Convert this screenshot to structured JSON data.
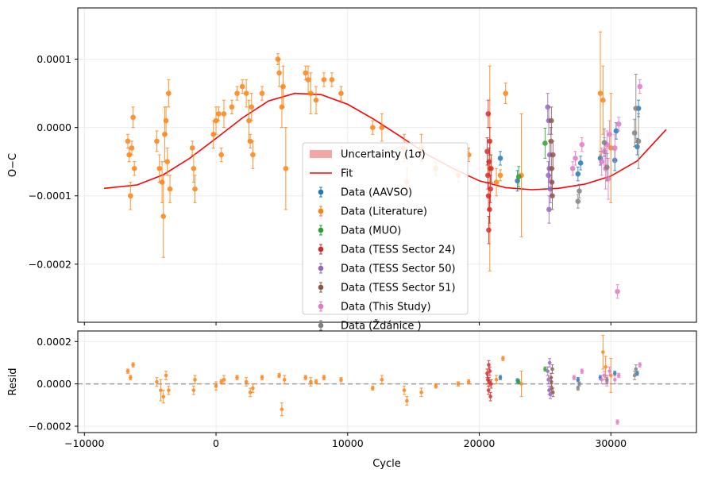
{
  "chart_data": [
    {
      "type": "scatter",
      "panel": "top",
      "xlabel": "",
      "ylabel": "O−C",
      "xlim": [
        -10500,
        36500
      ],
      "ylim": [
        -0.000285,
        0.000175
      ],
      "xticks": [
        -10000,
        0,
        10000,
        20000,
        30000
      ],
      "yticks": [
        -0.0002,
        -0.0001,
        0.0,
        0.0001
      ],
      "ytick_labels": [
        "−0.0002",
        "−0.0001",
        "0.0000",
        "0.0001"
      ],
      "grid": true,
      "legend_position": "center",
      "legend": {
        "band_label": "Uncertainty (1σ)",
        "fit_label": "Fit",
        "series_labels": [
          "Data (AAVSO)",
          "Data (Literature)",
          "Data (MUO)",
          "Data (TESS Sector 24)",
          "Data (TESS Sector 50)",
          "Data (TESS Sector 51)",
          "Data (This Study)",
          "Data (Ždánice )"
        ]
      },
      "fit": {
        "x": [
          -8500,
          -6000,
          -4000,
          -2000,
          0,
          2000,
          4000,
          6000,
          8000,
          10000,
          12000,
          14000,
          16000,
          18000,
          20000,
          22000,
          24000,
          26000,
          28000,
          30000,
          32000,
          34200
        ],
        "y": [
          -8.9e-05,
          -8.4e-05,
          -6.9e-05,
          -4.5e-05,
          -1.6e-05,
          1.4e-05,
          3.9e-05,
          5e-05,
          4.8e-05,
          3.4e-05,
          1.2e-05,
          -1.3e-05,
          -3.9e-05,
          -6e-05,
          -7.8e-05,
          -8.8e-05,
          -9.1e-05,
          -8.9e-05,
          -8.3e-05,
          -7.1e-05,
          -4.9e-05,
          -3e-06
        ]
      },
      "series": [
        {
          "name": "Data (AAVSO)",
          "color": "#1f77b4",
          "x": [
            21600,
            22900,
            27500,
            27700,
            29200,
            30300,
            30400,
            32000,
            32100
          ],
          "y": [
            -4.5e-05,
            -7.8e-05,
            -6.8e-05,
            -5.2e-05,
            -4.5e-05,
            -4.8e-05,
            -5e-06,
            -2.8e-05,
            2.8e-05
          ],
          "err": [
            1e-05,
            1.5e-05,
            1e-05,
            1e-05,
            1e-05,
            1.5e-05,
            1.2e-05,
            1.2e-05,
            1.2e-05
          ]
        },
        {
          "name": "Data (Literature)",
          "color": "#ff7f0e",
          "x": [
            -6700,
            -6600,
            -6500,
            -6400,
            -6300,
            -6200,
            -4500,
            -4300,
            -4100,
            -4000,
            -3900,
            -3800,
            -3700,
            -3600,
            -3500,
            -1800,
            -1700,
            -1600,
            -200,
            0,
            200,
            400,
            600,
            1200,
            1600,
            2000,
            2300,
            2500,
            2600,
            2700,
            2800,
            3500,
            4700,
            4800,
            5000,
            5100,
            5300,
            6800,
            7000,
            7200,
            7600,
            8200,
            8800,
            9500,
            11900,
            12600,
            14300,
            14500,
            15600,
            16700,
            18400,
            19200,
            20800,
            21300,
            21600,
            22000,
            23200,
            29200,
            29400,
            30000
          ],
          "y": [
            -2e-05,
            -4e-05,
            -0.0001,
            -3e-05,
            1.5e-05,
            -6e-05,
            -2e-05,
            -6e-05,
            -8e-05,
            -0.00013,
            -1e-05,
            1e-05,
            -5e-05,
            5e-05,
            -9e-05,
            -3e-05,
            -6e-05,
            -9e-05,
            -1e-05,
            1e-05,
            2e-05,
            -4e-05,
            2e-05,
            3e-05,
            5e-05,
            6e-05,
            5e-05,
            1e-05,
            -2e-05,
            3e-05,
            -4e-05,
            5e-05,
            0.0001,
            8e-05,
            3e-05,
            6e-05,
            -6e-05,
            8e-05,
            7e-05,
            5e-05,
            4e-05,
            7e-05,
            7e-05,
            5e-05,
            0.0,
            0.0,
            -3e-05,
            -8e-05,
            -3e-05,
            -6e-05,
            -7e-05,
            -4e-05,
            -6e-05,
            -8e-05,
            -7e-05,
            5e-05,
            -7e-05,
            5e-05,
            4e-05,
            -3e-05
          ],
          "err": [
            1e-05,
            1e-05,
            2e-05,
            1e-05,
            1.5e-05,
            1e-05,
            1.5e-05,
            2e-05,
            3e-05,
            6e-05,
            4e-05,
            2e-05,
            2e-05,
            2e-05,
            2e-05,
            1e-05,
            2e-05,
            2e-05,
            2e-05,
            2e-05,
            1e-05,
            1e-05,
            2e-05,
            1e-05,
            1e-05,
            1e-05,
            2e-05,
            3e-05,
            1e-05,
            2e-05,
            2e-05,
            1e-05,
            8e-06,
            2e-05,
            3e-05,
            3e-05,
            6e-05,
            1e-05,
            2e-05,
            3e-05,
            2e-05,
            1e-05,
            1e-05,
            1e-05,
            1e-05,
            2e-05,
            2e-05,
            2e-05,
            2e-05,
            1e-05,
            1e-05,
            1e-05,
            0.00015,
            2e-05,
            8e-06,
            1.5e-05,
            9e-05,
            9e-05,
            5e-05,
            8e-05
          ]
        },
        {
          "name": "Data (MUO)",
          "color": "#2ca02c",
          "x": [
            23000,
            25000
          ],
          "y": [
            -7.2e-05,
            -2.3e-05
          ],
          "err": [
            1.5e-05,
            2.2e-05
          ]
        },
        {
          "name": "Data (TESS Sector 24)",
          "color": "#d62728",
          "x": [
            20600,
            20650,
            20700,
            20750,
            20800,
            20850,
            20900,
            20720,
            20680,
            20780
          ],
          "y": [
            -3.5e-05,
            -7e-05,
            -0.0001,
            -5e-05,
            -2e-05,
            -9e-05,
            -6e-05,
            -0.00015,
            2e-05,
            -0.00012
          ],
          "err": [
            2e-05,
            2e-05,
            2e-05,
            2e-05,
            2e-05,
            2e-05,
            2e-05,
            2e-05,
            2e-05,
            2e-05
          ]
        },
        {
          "name": "Data (TESS Sector 50)",
          "color": "#9467bd",
          "x": [
            25200,
            25250,
            25300,
            25350,
            25400,
            25280,
            25320
          ],
          "y": [
            3e-05,
            -7e-05,
            -0.00012,
            -4e-05,
            -9e-05,
            1e-05,
            -6e-05
          ],
          "err": [
            2e-05,
            2e-05,
            2e-05,
            2e-05,
            2e-05,
            2e-05,
            2e-05
          ]
        },
        {
          "name": "Data (TESS Sector 51)",
          "color": "#8c564b",
          "x": [
            25450,
            25500,
            25550,
            25600,
            25480,
            25520
          ],
          "y": [
            -2e-05,
            -6e-05,
            -0.0001,
            -4e-05,
            1e-05,
            -8e-05
          ],
          "err": [
            2e-05,
            2e-05,
            2e-05,
            2e-05,
            2e-05,
            2e-05
          ]
        },
        {
          "name": "Data (This Study)",
          "color": "#e377c2",
          "x": [
            27100,
            27300,
            27800,
            29300,
            29500,
            29600,
            29700,
            29800,
            29900,
            30300,
            30500,
            30600,
            32200
          ],
          "y": [
            -6e-05,
            -4.5e-05,
            -2.5e-05,
            -5e-05,
            -3.5e-05,
            -6e-05,
            -2.5e-05,
            -7.5e-05,
            -1e-05,
            -3e-05,
            -0.00024,
            5e-06,
            6e-05
          ],
          "err": [
            1e-05,
            1e-05,
            1e-05,
            2e-05,
            2e-05,
            3e-05,
            2e-05,
            3e-05,
            2e-05,
            2e-05,
            1e-05,
            1e-05,
            1e-05
          ]
        },
        {
          "name": "Data (Ždánice )",
          "color": "#7f7f7f",
          "x": [
            27500,
            27600,
            29500,
            29700,
            31800,
            31900,
            32100
          ],
          "y": [
            -0.000108,
            -9.3e-05,
            -2.2e-05,
            -5.8e-05,
            -8e-06,
            2.8e-05,
            -2e-05
          ],
          "err": [
            1e-05,
            1e-05,
            2e-05,
            2e-05,
            2e-05,
            5e-05,
            4e-05
          ]
        }
      ]
    },
    {
      "type": "scatter",
      "panel": "bottom",
      "xlabel": "Cycle",
      "ylabel": "Resid",
      "xlim": [
        -10500,
        36500
      ],
      "ylim": [
        -0.00023,
        0.00025
      ],
      "xticks": [
        -10000,
        0,
        10000,
        20000,
        30000
      ],
      "xtick_labels": [
        "−10000",
        "0",
        "10000",
        "20000",
        "30000"
      ],
      "yticks": [
        -0.0002,
        0.0,
        0.0002
      ],
      "ytick_labels": [
        "−0.0002",
        "0.0000",
        "0.0002"
      ],
      "grid": true,
      "reference_line": 0,
      "series": [
        {
          "name": "Data (AAVSO)",
          "color": "#1f77b4",
          "x": [
            21600,
            22900,
            27500,
            29200,
            30300,
            32000
          ],
          "y": [
            3e-05,
            1.5e-05,
            2e-05,
            3e-05,
            5e-05,
            5e-05
          ],
          "err": [
            1e-05,
            1e-05,
            1e-05,
            1e-05,
            1e-05,
            1e-05
          ]
        },
        {
          "name": "Data (Literature)",
          "color": "#ff7f0e",
          "x": [
            -6700,
            -6500,
            -6300,
            -4500,
            -4200,
            -4000,
            -3800,
            -3600,
            -1700,
            -1600,
            0,
            400,
            600,
            1600,
            2300,
            2600,
            2800,
            3500,
            4800,
            5000,
            5200,
            6800,
            7200,
            7600,
            8200,
            9500,
            11900,
            12600,
            14300,
            14500,
            15600,
            16700,
            18400,
            19200,
            21300,
            21800,
            23200,
            29400,
            29600,
            30000
          ],
          "y": [
            6e-05,
            3e-05,
            9e-05,
            1e-05,
            -3e-05,
            -6e-05,
            4e-05,
            -3e-05,
            -3e-05,
            2e-05,
            -1e-05,
            1e-05,
            2e-05,
            3e-05,
            1e-05,
            -4e-05,
            -2e-05,
            3e-05,
            4e-05,
            -0.00012,
            2e-05,
            3e-05,
            1e-05,
            1e-05,
            3e-05,
            2e-05,
            -2e-05,
            2e-05,
            -3e-05,
            -8e-05,
            -4e-05,
            -1e-05,
            0.0,
            1e-05,
            2e-05,
            0.00012,
            0.0,
            0.00015,
            8e-05,
            4e-05
          ],
          "err": [
            1e-05,
            1e-05,
            1e-05,
            2e-05,
            5e-05,
            3e-05,
            2e-05,
            2e-05,
            2e-05,
            2e-05,
            2e-05,
            1e-05,
            2e-05,
            1e-05,
            2e-05,
            2e-05,
            2e-05,
            1e-05,
            1e-05,
            3e-05,
            2e-05,
            1e-05,
            2e-05,
            1e-05,
            1e-05,
            1e-05,
            1e-05,
            2e-05,
            2e-05,
            2e-05,
            2e-05,
            1e-05,
            1e-05,
            1e-05,
            2e-05,
            1e-05,
            6e-05,
            8e-05,
            5e-05,
            8e-05
          ]
        },
        {
          "name": "Data (MUO)",
          "color": "#2ca02c",
          "x": [
            23000,
            25000
          ],
          "y": [
            1e-05,
            7e-05
          ],
          "err": [
            1e-05,
            1e-05
          ]
        },
        {
          "name": "Data (TESS Sector 24)",
          "color": "#d62728",
          "x": [
            20600,
            20650,
            20700,
            20750,
            20800,
            20850,
            20900,
            20720
          ],
          "y": [
            5e-05,
            2e-05,
            -3e-05,
            1e-05,
            6e-05,
            -6e-05,
            0.0,
            9e-05
          ],
          "err": [
            2e-05,
            2e-05,
            2e-05,
            2e-05,
            2e-05,
            2e-05,
            2e-05,
            2e-05
          ]
        },
        {
          "name": "Data (TESS Sector 50)",
          "color": "#9467bd",
          "x": [
            25200,
            25250,
            25300,
            25350,
            25400
          ],
          "y": [
            6e-05,
            2e-05,
            -3e-05,
            0.0001,
            -5e-05
          ],
          "err": [
            2e-05,
            2e-05,
            2e-05,
            2e-05,
            2e-05
          ]
        },
        {
          "name": "Data (TESS Sector 51)",
          "color": "#8c564b",
          "x": [
            25450,
            25500,
            25550,
            25600,
            25480
          ],
          "y": [
            3e-05,
            -2e-05,
            7e-05,
            -4e-05,
            1e-05
          ],
          "err": [
            2e-05,
            2e-05,
            2e-05,
            2e-05,
            2e-05
          ]
        },
        {
          "name": "Data (This Study)",
          "color": "#e377c2",
          "x": [
            27200,
            27800,
            29300,
            29500,
            29700,
            29900,
            30300,
            30500,
            30600,
            32200
          ],
          "y": [
            3e-05,
            6e-05,
            2e-05,
            4e-05,
            1e-05,
            6e-05,
            2e-05,
            -0.00018,
            4e-05,
            9e-05
          ],
          "err": [
            1e-05,
            1e-05,
            2e-05,
            2e-05,
            2e-05,
            2e-05,
            2e-05,
            1e-05,
            1e-05,
            1e-05
          ]
        },
        {
          "name": "Data (Ždánice )",
          "color": "#7f7f7f",
          "x": [
            27500,
            27600,
            29700,
            31800,
            31900
          ],
          "y": [
            -2e-05,
            0.0,
            2e-05,
            4e-05,
            7e-05
          ],
          "err": [
            1e-05,
            1e-05,
            2e-05,
            2e-05,
            2e-05
          ]
        }
      ]
    }
  ]
}
